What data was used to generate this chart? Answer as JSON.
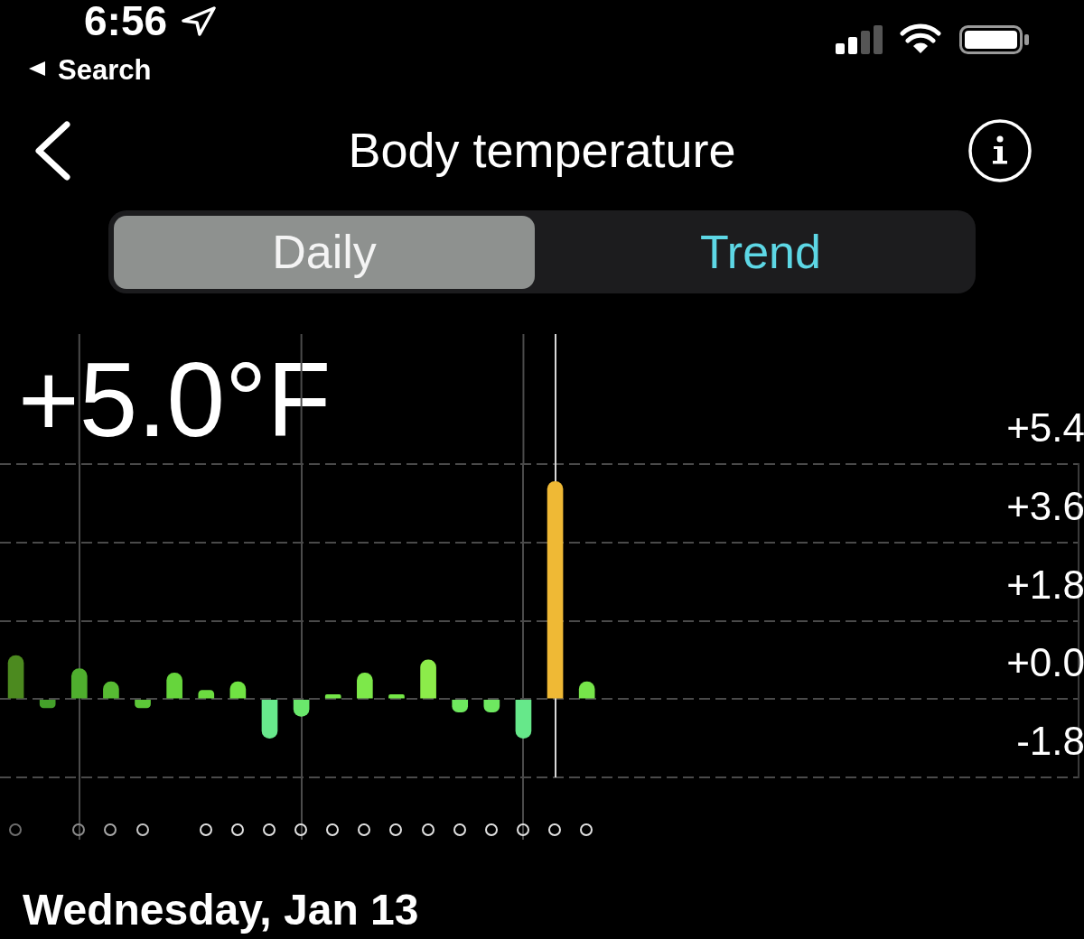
{
  "chart_data": {
    "type": "bar",
    "title": "Body temperature",
    "annotations": [
      "6:56",
      "Search",
      "Daily",
      "Trend",
      "+5.0°F",
      "Wednesday, Jan 13"
    ],
    "categories": [
      null,
      null,
      null,
      null,
      null,
      null,
      null,
      null,
      null,
      null,
      null,
      null,
      null,
      null,
      null,
      null,
      null,
      null,
      null,
      null,
      null,
      null,
      null,
      null,
      null,
      null,
      null,
      null,
      null,
      null,
      null,
      null,
      null,
      null
    ],
    "values": [
      1.0,
      -0.2,
      0.7,
      0.4,
      -0.2,
      0.6,
      0.2,
      0.4,
      -0.9,
      -0.4,
      0.1,
      0.6,
      0.1,
      0.9,
      -0.3,
      -0.3,
      -0.9,
      5.0,
      0.4,
      null,
      null,
      null,
      null,
      null,
      null,
      null,
      null,
      null,
      null,
      null,
      null,
      null,
      null,
      null
    ],
    "colors": [
      "#4c8a1f",
      "#44a02a",
      "#4fae2e",
      "#57bb33",
      "#5cc738",
      "#66d53c",
      "#6cdc40",
      "#70e243",
      "#68e88c",
      "#6ae86c",
      "#74e648",
      "#7de84a",
      "#74e646",
      "#8cec4a",
      "#6ee85e",
      "#6ee860",
      "#66e88a",
      "#efb935",
      "#76e44a",
      null,
      null,
      null,
      null,
      null,
      null,
      null,
      null,
      null,
      null,
      null,
      null,
      null,
      null,
      null
    ],
    "ylim": [
      -1.8,
      5.4
    ],
    "yticks": [
      {
        "value": -1.8,
        "label": "-1.8"
      },
      {
        "value": 0,
        "label": "+0.0"
      },
      {
        "value": 1.8,
        "label": "+1.8"
      },
      {
        "value": 3.6,
        "label": "+3.6"
      },
      {
        "value": 5.4,
        "label": "+5.4"
      }
    ],
    "grid": true,
    "tick_labels": "y"
  }
}
